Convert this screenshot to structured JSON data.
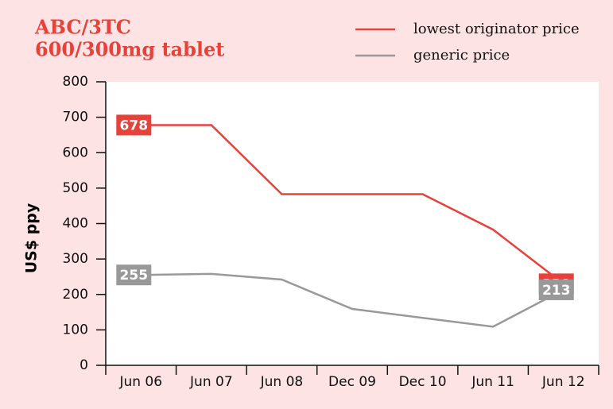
{
  "chart_data": {
    "type": "line",
    "title": [
      "ABC/3TC",
      "600/300mg tablet"
    ],
    "y_label": "US$ ppy",
    "categories": [
      "Jun 06",
      "Jun 07",
      "Jun 08",
      "Dec 09",
      "Dec 10",
      "Jun 11",
      "Jun 12"
    ],
    "series": [
      {
        "name": "lowest originator price",
        "color": "#e8413a",
        "values": [
          678,
          678,
          483,
          483,
          483,
          383,
          230
        ]
      },
      {
        "name": "generic price",
        "color": "#999999",
        "values": [
          255,
          258,
          242,
          159,
          134,
          109,
          213
        ]
      }
    ],
    "ylim": [
      0,
      800
    ],
    "yticks": [
      0,
      100,
      200,
      300,
      400,
      500,
      600,
      700,
      800
    ],
    "grid": false,
    "legend": "top-right"
  }
}
